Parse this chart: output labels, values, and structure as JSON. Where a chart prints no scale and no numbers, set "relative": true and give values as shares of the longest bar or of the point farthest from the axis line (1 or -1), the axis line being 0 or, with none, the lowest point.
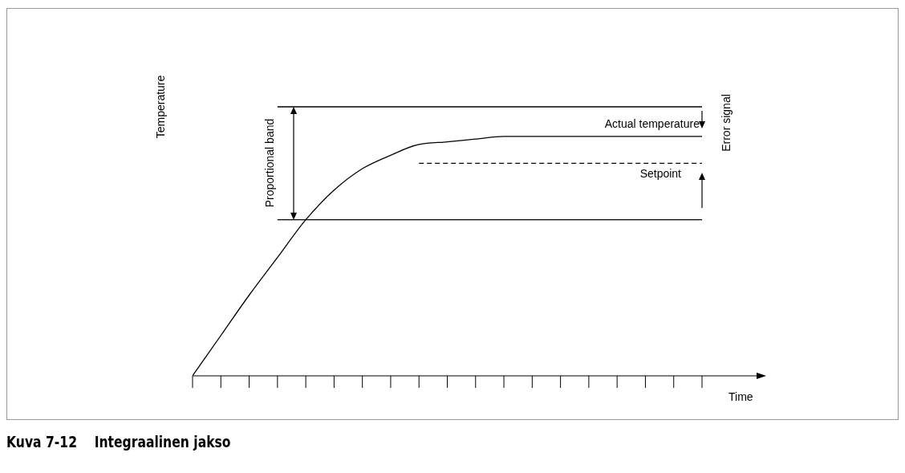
{
  "chart_data": {
    "type": "line",
    "title": "Kuva 7-12    Integraalinen jakso",
    "xlabel": "Time",
    "ylabel": "Temperature",
    "relative": true,
    "categories": [
      null,
      null,
      null,
      null,
      null,
      null,
      null,
      null,
      null,
      null,
      null,
      null,
      null,
      null,
      null,
      null,
      null,
      null,
      null
    ],
    "series": [
      {
        "color": "#000000",
        "line_style": "solid",
        "values": [
          0,
          0.15,
          0.3,
          0.44,
          0.58,
          0.69,
          0.77,
          0.82,
          0.86,
          0.87,
          0.88,
          0.89,
          0.89,
          0.89,
          0.89,
          0.89,
          0.89,
          0.89,
          0.89
        ]
      },
      {
        "color": "#000000",
        "line_style": "solid",
        "values": [
          null,
          null,
          null,
          1,
          1,
          1,
          1,
          1,
          1,
          1,
          1,
          1,
          1,
          1,
          1,
          1,
          1,
          1,
          1
        ]
      },
      {
        "color": "#000000",
        "line_style": "solid",
        "values": [
          null,
          null,
          null,
          0.58,
          0.58,
          0.58,
          0.58,
          0.58,
          0.58,
          0.58,
          0.58,
          0.58,
          0.58,
          0.58,
          0.58,
          0.58,
          0.58,
          0.58,
          0.58
        ]
      },
      {
        "color": "#000000",
        "line_style": "dashed",
        "values": [
          null,
          null,
          null,
          null,
          null,
          null,
          null,
          null,
          0.79,
          0.79,
          0.79,
          0.79,
          0.79,
          0.79,
          0.79,
          0.79,
          0.79,
          0.79,
          0.79
        ]
      }
    ],
    "annotations": [
      "Proportional band",
      "Actual temperature",
      "Setpoint",
      "Error signal"
    ]
  }
}
